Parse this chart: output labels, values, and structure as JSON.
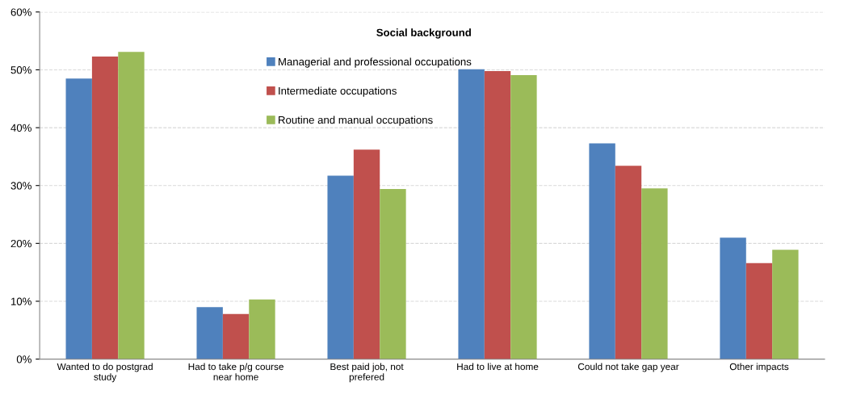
{
  "chart_data": {
    "type": "bar",
    "categories": [
      "Wanted to do postgrad study",
      "Had to take p/g course near home",
      "Best paid job, not prefered",
      "Had to live at home",
      "Could not take gap year",
      "Other impacts"
    ],
    "series": [
      {
        "name": "Managerial and professional occupations",
        "color": "#4f81bd",
        "values": [
          48.5,
          9.0,
          31.7,
          50.1,
          37.3,
          21.0
        ]
      },
      {
        "name": "Intermediate occupations",
        "color": "#c0504d",
        "values": [
          52.3,
          7.8,
          36.2,
          49.8,
          33.4,
          16.6
        ]
      },
      {
        "name": "Routine and manual occupations",
        "color": "#9bbb59",
        "values": [
          53.1,
          10.3,
          29.4,
          49.1,
          29.5,
          18.9
        ]
      }
    ],
    "legend_title": "Social background",
    "ylim": [
      0,
      60
    ],
    "yticks": [
      {
        "value": 0,
        "label": "0%"
      },
      {
        "value": 10,
        "label": "10%"
      },
      {
        "value": 20,
        "label": "20%"
      },
      {
        "value": 30,
        "label": "30%"
      },
      {
        "value": 40,
        "label": "40%"
      },
      {
        "value": 50,
        "label": "50%"
      },
      {
        "value": 60,
        "label": "60%"
      }
    ],
    "grid": "y",
    "legend": "top"
  }
}
